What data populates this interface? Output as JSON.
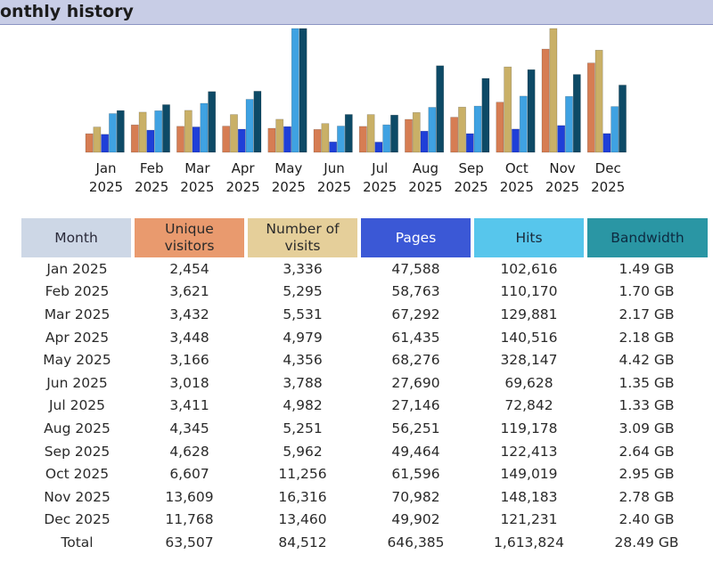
{
  "title": "onthly history",
  "colors": {
    "unique": "#d67d53",
    "visits": "#c9b067",
    "pages": "#1f3fd8",
    "hits": "#3fa2e2",
    "bandwidth": "#0d4a66",
    "month_header": "#cdd7e6"
  },
  "headers": {
    "month": "Month",
    "unique": "Unique visitors",
    "visits": "Number of visits",
    "pages": "Pages",
    "hits": "Hits",
    "bandwidth": "Bandwidth"
  },
  "rows": [
    {
      "month": "Jan 2025",
      "unique": "2,454",
      "visits": "3,336",
      "pages": "47,588",
      "hits": "102,616",
      "bandwidth": "1.49 GB"
    },
    {
      "month": "Feb 2025",
      "unique": "3,621",
      "visits": "5,295",
      "pages": "58,763",
      "hits": "110,170",
      "bandwidth": "1.70 GB"
    },
    {
      "month": "Mar 2025",
      "unique": "3,432",
      "visits": "5,531",
      "pages": "67,292",
      "hits": "129,881",
      "bandwidth": "2.17 GB"
    },
    {
      "month": "Apr 2025",
      "unique": "3,448",
      "visits": "4,979",
      "pages": "61,435",
      "hits": "140,516",
      "bandwidth": "2.18 GB"
    },
    {
      "month": "May 2025",
      "unique": "3,166",
      "visits": "4,356",
      "pages": "68,276",
      "hits": "328,147",
      "bandwidth": "4.42 GB"
    },
    {
      "month": "Jun 2025",
      "unique": "3,018",
      "visits": "3,788",
      "pages": "27,690",
      "hits": "69,628",
      "bandwidth": "1.35 GB"
    },
    {
      "month": "Jul 2025",
      "unique": "3,411",
      "visits": "4,982",
      "pages": "27,146",
      "hits": "72,842",
      "bandwidth": "1.33 GB"
    },
    {
      "month": "Aug 2025",
      "unique": "4,345",
      "visits": "5,251",
      "pages": "56,251",
      "hits": "119,178",
      "bandwidth": "3.09 GB"
    },
    {
      "month": "Sep 2025",
      "unique": "4,628",
      "visits": "5,962",
      "pages": "49,464",
      "hits": "122,413",
      "bandwidth": "2.64 GB"
    },
    {
      "month": "Oct 2025",
      "unique": "6,607",
      "visits": "11,256",
      "pages": "61,596",
      "hits": "149,019",
      "bandwidth": "2.95 GB"
    },
    {
      "month": "Nov 2025",
      "unique": "13,609",
      "visits": "16,316",
      "pages": "70,982",
      "hits": "148,183",
      "bandwidth": "2.78 GB"
    },
    {
      "month": "Dec 2025",
      "unique": "11,768",
      "visits": "13,460",
      "pages": "49,902",
      "hits": "121,231",
      "bandwidth": "2.40 GB"
    }
  ],
  "total": {
    "month": "Total",
    "unique": "63,507",
    "visits": "84,512",
    "pages": "646,385",
    "hits": "1,613,824",
    "bandwidth": "28.49 GB"
  },
  "chart_data": {
    "type": "bar",
    "categories": [
      [
        "Jan",
        "2025"
      ],
      [
        "Feb",
        "2025"
      ],
      [
        "Mar",
        "2025"
      ],
      [
        "Apr",
        "2025"
      ],
      [
        "May",
        "2025"
      ],
      [
        "Jun",
        "2025"
      ],
      [
        "Jul",
        "2025"
      ],
      [
        "Aug",
        "2025"
      ],
      [
        "Sep",
        "2025"
      ],
      [
        "Oct",
        "2025"
      ],
      [
        "Nov",
        "2025"
      ],
      [
        "Dec",
        "2025"
      ]
    ],
    "series": [
      {
        "key": "unique",
        "color": "#d67d53",
        "values": [
          2454,
          3621,
          3432,
          3448,
          3166,
          3018,
          3411,
          4345,
          4628,
          6607,
          13609,
          11768
        ]
      },
      {
        "key": "visits",
        "color": "#c9b067",
        "values": [
          3336,
          5295,
          5531,
          4979,
          4356,
          3788,
          4982,
          5251,
          5962,
          11256,
          16316,
          13460
        ]
      },
      {
        "key": "pages",
        "color": "#1f3fd8",
        "values": [
          47588,
          58763,
          67292,
          61435,
          68276,
          27690,
          27146,
          56251,
          49464,
          61596,
          70982,
          49902
        ]
      },
      {
        "key": "hits",
        "color": "#3fa2e2",
        "values": [
          102616,
          110170,
          129881,
          140516,
          328147,
          69628,
          72842,
          119178,
          122413,
          149019,
          148183,
          121231
        ]
      },
      {
        "key": "bandwidth",
        "color": "#0d4a66",
        "unit": "GB",
        "values": [
          1.49,
          1.7,
          2.17,
          2.18,
          4.42,
          1.35,
          1.33,
          3.09,
          2.64,
          2.95,
          2.78,
          2.4
        ]
      }
    ],
    "scale_groups": [
      [
        "unique",
        "visits"
      ],
      [
        "pages",
        "hits"
      ],
      [
        "bandwidth"
      ]
    ],
    "grid": false,
    "legend": "none"
  }
}
